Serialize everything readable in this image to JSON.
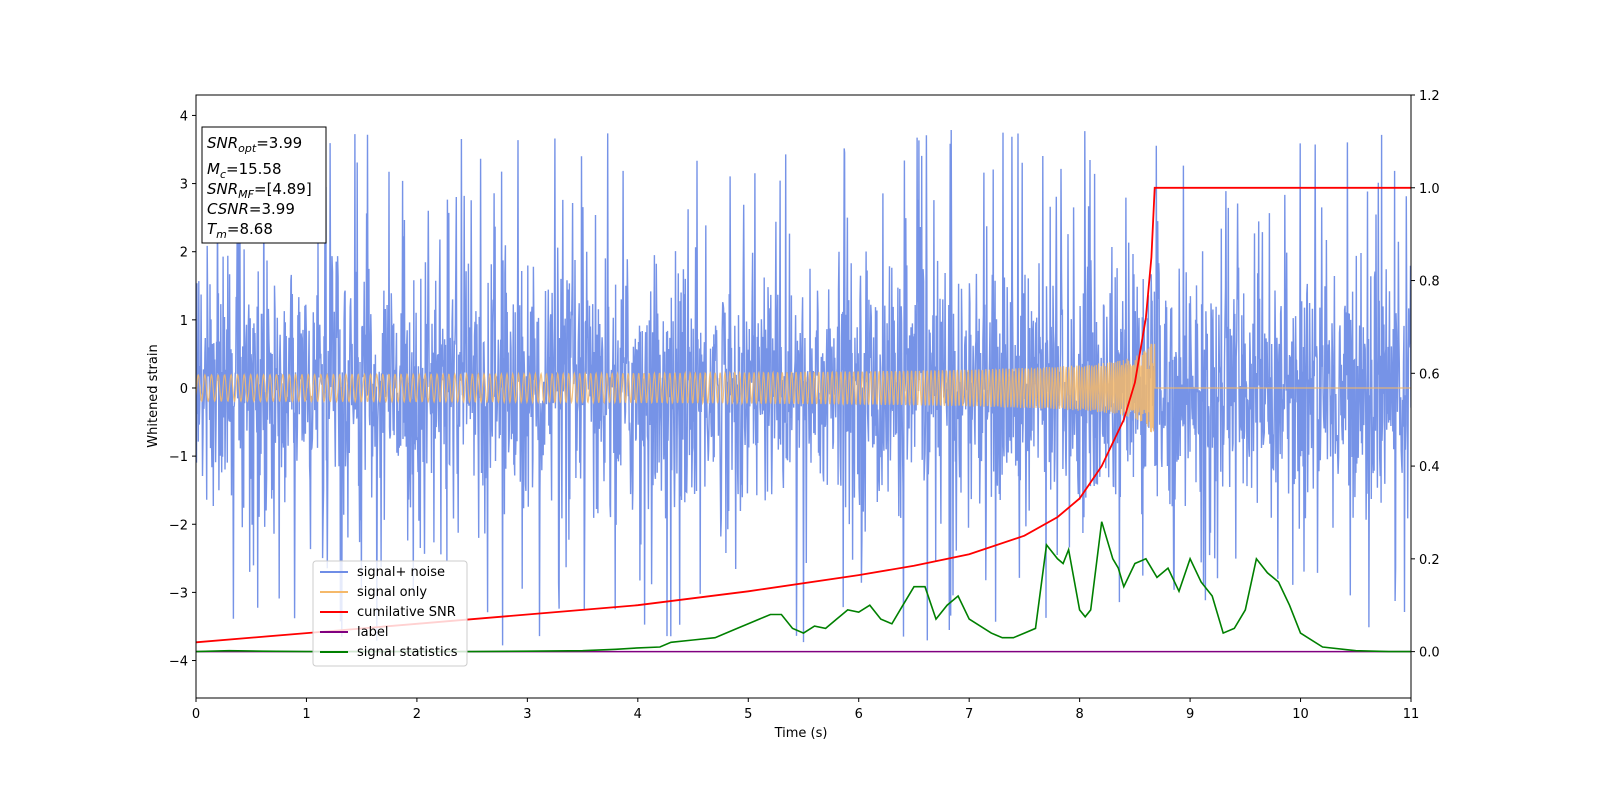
{
  "chart_data": {
    "type": "line",
    "xlabel": "Time (s)",
    "ylabel": "Whitened strain",
    "xlim": [
      0,
      11
    ],
    "ylim": [
      -4.55,
      4.3
    ],
    "y2lim": [
      -0.1,
      1.2
    ],
    "x_ticks": [
      "0",
      "1",
      "2",
      "3",
      "4",
      "5",
      "6",
      "7",
      "8",
      "9",
      "10",
      "11"
    ],
    "y_ticks": [
      "4",
      "3",
      "2",
      "1",
      "0",
      "−1",
      "−2",
      "−3",
      "−4"
    ],
    "y2_ticks": [
      "1.2",
      "1.0",
      "0.8",
      "0.6",
      "0.4",
      "0.2",
      "0.0"
    ],
    "legend_position": "lower-left",
    "colors": {
      "signal_noise": "#6f8de6",
      "signal_only": "#f5b96a",
      "cumulative_snr": "#ff0000",
      "label": "#800080",
      "signal_statistics": "#008000"
    },
    "stats_box": {
      "snr_opt_main": "SNR",
      "snr_opt_sub": "opt",
      "snr_opt_value": "=3.99",
      "mc_main": "M",
      "mc_sub": "c",
      "mc_value": "=15.58",
      "snr_mf_main": "SNR",
      "snr_mf_sub": "MF",
      "snr_mf_value": "=[4.89]",
      "csnr_main": "CSNR",
      "csnr_value": "=3.99",
      "tm_main": "T",
      "tm_sub": "m",
      "tm_value": "=8.68"
    },
    "merger_time": 8.68,
    "series": [
      {
        "name": "signal+ noise",
        "axis": "left",
        "description_values": "white noise, roughly ±2 with spikes to about ±3.8",
        "amplitude_range": [
          -4.2,
          3.85
        ]
      },
      {
        "name": "signal only",
        "axis": "left",
        "chirp_end_time": 8.68,
        "peak_amplitude": 0.65
      },
      {
        "name": "cumilative SNR",
        "axis": "right",
        "x": [
          0,
          1,
          2,
          3,
          4,
          5,
          6,
          6.5,
          7,
          7.5,
          7.8,
          8.0,
          8.2,
          8.4,
          8.5,
          8.6,
          8.65,
          8.68,
          8.7,
          11
        ],
        "y": [
          0.02,
          0.04,
          0.06,
          0.08,
          0.1,
          0.13,
          0.165,
          0.185,
          0.21,
          0.25,
          0.29,
          0.33,
          0.4,
          0.5,
          0.58,
          0.72,
          0.85,
          1.0,
          1.0,
          1.0
        ]
      },
      {
        "name": "label",
        "axis": "right",
        "x": [
          0,
          11
        ],
        "y": [
          0,
          0
        ]
      },
      {
        "name": "signal statistics",
        "axis": "right",
        "x": [
          0,
          0.3,
          0.6,
          1,
          2,
          2.5,
          3,
          3.5,
          3.8,
          4.0,
          4.2,
          4.3,
          4.5,
          4.7,
          4.9,
          5.0,
          5.1,
          5.2,
          5.3,
          5.4,
          5.5,
          5.6,
          5.7,
          5.8,
          5.85,
          5.9,
          6.0,
          6.1,
          6.2,
          6.3,
          6.4,
          6.5,
          6.6,
          6.7,
          6.8,
          6.9,
          7.0,
          7.2,
          7.3,
          7.4,
          7.5,
          7.6,
          7.7,
          7.8,
          7.85,
          7.9,
          8.0,
          8.05,
          8.1,
          8.2,
          8.3,
          8.35,
          8.4,
          8.5,
          8.6,
          8.7,
          8.8,
          8.9,
          9.0,
          9.1,
          9.2,
          9.3,
          9.4,
          9.5,
          9.6,
          9.7,
          9.8,
          9.9,
          10.0,
          10.2,
          10.5,
          10.8,
          11
        ],
        "y": [
          0,
          0.002,
          0.001,
          0,
          0,
          0,
          0.001,
          0.002,
          0.005,
          0.008,
          0.01,
          0.02,
          0.025,
          0.03,
          0.05,
          0.06,
          0.07,
          0.08,
          0.08,
          0.05,
          0.04,
          0.055,
          0.05,
          0.07,
          0.08,
          0.09,
          0.085,
          0.1,
          0.07,
          0.06,
          0.1,
          0.14,
          0.14,
          0.07,
          0.1,
          0.12,
          0.07,
          0.04,
          0.03,
          0.03,
          0.04,
          0.05,
          0.23,
          0.2,
          0.19,
          0.22,
          0.09,
          0.075,
          0.09,
          0.28,
          0.2,
          0.18,
          0.14,
          0.19,
          0.2,
          0.16,
          0.18,
          0.13,
          0.2,
          0.15,
          0.12,
          0.04,
          0.05,
          0.09,
          0.2,
          0.17,
          0.15,
          0.1,
          0.04,
          0.01,
          0.002,
          0,
          0
        ]
      }
    ]
  }
}
